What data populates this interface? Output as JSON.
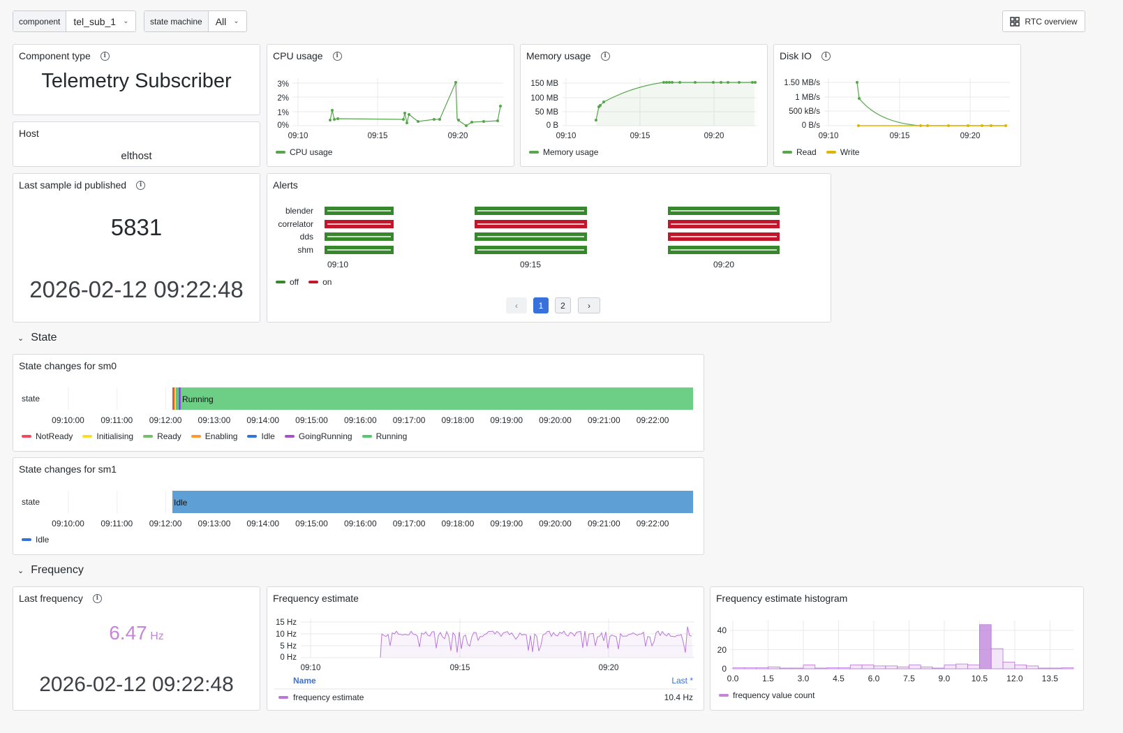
{
  "vars": {
    "component_label": "component",
    "component_value": "tel_sub_1",
    "sm_label": "state machine",
    "sm_value": "All",
    "rtc_button": "RTC overview"
  },
  "component_type": {
    "title": "Component type",
    "value": "Telemetry Subscriber"
  },
  "host": {
    "title": "Host",
    "value": "elthost"
  },
  "cpu": {
    "title": "CPU usage",
    "yticks": [
      "3%",
      "2%",
      "1%",
      "0%"
    ],
    "xticks": [
      "09:10",
      "09:15",
      "09:20"
    ],
    "legend": "CPU usage",
    "color": "#56a64b"
  },
  "memory": {
    "title": "Memory usage",
    "yticks": [
      "150 MB",
      "100 MB",
      "50 MB",
      "0 B"
    ],
    "xticks": [
      "09:10",
      "09:15",
      "09:20"
    ],
    "legend": "Memory usage",
    "color": "#56a64b"
  },
  "disk": {
    "title": "Disk IO",
    "yticks": [
      "1.50 MB/s",
      "1 MB/s",
      "500 kB/s",
      "0 B/s"
    ],
    "xticks": [
      "09:10",
      "09:15",
      "09:20"
    ],
    "legend_read": "Read",
    "legend_write": "Write",
    "read_color": "#56a64b",
    "write_color": "#e0b400"
  },
  "last_sample": {
    "title": "Last sample id published",
    "value": "5831",
    "time": "2026-02-12 09:22:48"
  },
  "alerts": {
    "title": "Alerts",
    "rows": [
      {
        "name": "blender",
        "states": [
          "off",
          "off",
          "off"
        ]
      },
      {
        "name": "correlator",
        "states": [
          "on",
          "on",
          "on"
        ]
      },
      {
        "name": "dds",
        "states": [
          "off",
          "off",
          "on"
        ]
      },
      {
        "name": "shm",
        "states": [
          "off",
          "off",
          "off"
        ]
      }
    ],
    "xticks": [
      "09:10",
      "09:15",
      "09:20"
    ],
    "legend_off": "off",
    "legend_on": "on",
    "off_color": "#37872d",
    "on_color": "#c4162a",
    "pages": [
      "1",
      "2"
    ],
    "prev": "‹",
    "next": "›"
  },
  "state_section": {
    "title": "State"
  },
  "sm0": {
    "title": "State changes for sm0",
    "row_label": "state",
    "bar_label": "Running",
    "xticks": [
      "09:10:00",
      "09:11:00",
      "09:12:00",
      "09:13:00",
      "09:14:00",
      "09:15:00",
      "09:16:00",
      "09:17:00",
      "09:18:00",
      "09:19:00",
      "09:20:00",
      "09:21:00",
      "09:22:00"
    ],
    "legend": [
      {
        "name": "NotReady",
        "color": "#f2495c"
      },
      {
        "name": "Initialising",
        "color": "#fade2a"
      },
      {
        "name": "Ready",
        "color": "#73bf69"
      },
      {
        "name": "Enabling",
        "color": "#ff9830"
      },
      {
        "name": "Idle",
        "color": "#3274d9"
      },
      {
        "name": "GoingRunning",
        "color": "#a352cc"
      },
      {
        "name": "Running",
        "color": "#56c96f"
      }
    ]
  },
  "sm1": {
    "title": "State changes for sm1",
    "row_label": "state",
    "bar_label": "Idle",
    "xticks": [
      "09:10:00",
      "09:11:00",
      "09:12:00",
      "09:13:00",
      "09:14:00",
      "09:15:00",
      "09:16:00",
      "09:17:00",
      "09:18:00",
      "09:19:00",
      "09:20:00",
      "09:21:00",
      "09:22:00"
    ],
    "legend": [
      {
        "name": "Idle",
        "color": "#3274d9"
      }
    ]
  },
  "frequency_section": {
    "title": "Frequency"
  },
  "last_freq": {
    "title": "Last frequency",
    "value": "6.47",
    "unit": "Hz",
    "time": "2026-02-12 09:22:48",
    "color": "#c586d8"
  },
  "freq_est": {
    "title": "Frequency estimate",
    "yticks": [
      "15 Hz",
      "10 Hz",
      "5 Hz",
      "0 Hz"
    ],
    "xticks": [
      "09:10",
      "09:15",
      "09:20"
    ],
    "col_name": "Name",
    "col_last": "Last *",
    "series_name": "frequency estimate",
    "series_last": "10.4 Hz",
    "color": "#b877d9"
  },
  "freq_hist": {
    "title": "Frequency estimate histogram",
    "yticks": [
      "40",
      "20",
      "0"
    ],
    "xticks": [
      "0.0",
      "1.5",
      "3.0",
      "4.5",
      "6.0",
      "7.5",
      "9.0",
      "10.5",
      "12.0",
      "13.5"
    ],
    "legend": "frequency value count",
    "color": "#b877d9"
  },
  "chart_data": [
    {
      "type": "line",
      "title": "CPU usage",
      "series": [
        {
          "name": "CPU usage",
          "x": [
            "09:12:05",
            "09:12:20",
            "09:12:30",
            "09:12:45",
            "09:16:40",
            "09:16:50",
            "09:17:00",
            "09:17:15",
            "09:17:45",
            "09:18:40",
            "09:19:00",
            "09:19:50",
            "09:20:00",
            "09:20:10",
            "09:20:30",
            "09:20:55",
            "09:21:30",
            "09:22:40",
            "09:22:50"
          ],
          "values": [
            0.4,
            1.1,
            0.4,
            0.5,
            0.4,
            0.9,
            0.4,
            0.8,
            0.3,
            0.5,
            0.5,
            3.1,
            0.4,
            0.3,
            0.0,
            0.2,
            0.3,
            0.3,
            1.3
          ]
        }
      ],
      "ylim": [
        0,
        3
      ]
    },
    {
      "type": "area",
      "title": "Memory usage",
      "series": [
        {
          "name": "Memory usage",
          "x": [
            "09:12:00",
            "09:12:15",
            "09:12:30",
            "09:13:00",
            "09:17:05",
            "09:17:15",
            "09:17:25",
            "09:17:35",
            "09:18:00",
            "09:18:35",
            "09:19:15",
            "09:20:00",
            "09:20:30",
            "09:20:55",
            "09:21:20",
            "09:21:45",
            "09:22:35",
            "09:22:50"
          ],
          "values": [
            5,
            60,
            70,
            80,
            150,
            150,
            150,
            150,
            150,
            150,
            150,
            150,
            150,
            150,
            150,
            150,
            150,
            150
          ]
        }
      ],
      "ylim": [
        0,
        160
      ]
    },
    {
      "type": "line",
      "title": "Disk IO",
      "series": [
        {
          "name": "Read",
          "x": [
            "09:12:00",
            "09:12:10",
            "09:15:20",
            "09:15:50",
            "09:17:00",
            "09:18:00",
            "09:19:00",
            "09:20:00",
            "09:21:00",
            "09:22:00"
          ],
          "values": [
            1.5,
            1.0,
            0.01,
            0.0,
            0.0,
            0.0,
            0.0,
            0.0,
            0.0,
            0.0
          ]
        },
        {
          "name": "Write",
          "x": [
            "09:12:00",
            "09:15:20",
            "09:15:50",
            "09:17:00",
            "09:18:20",
            "09:19:00",
            "09:20:00",
            "09:21:00",
            "09:22:00"
          ],
          "values": [
            0,
            0,
            0,
            0,
            0,
            0,
            0,
            0,
            0
          ]
        }
      ],
      "ylim": [
        0,
        1.6
      ]
    },
    {
      "type": "bar",
      "title": "Frequency estimate histogram",
      "categories": [
        "0.0",
        "0.5",
        "1.0",
        "1.5",
        "2.0",
        "2.5",
        "3.0",
        "3.5",
        "4.0",
        "4.5",
        "5.0",
        "5.5",
        "6.0",
        "6.5",
        "7.0",
        "7.5",
        "8.0",
        "8.5",
        "9.0",
        "9.5",
        "10.0",
        "10.5",
        "11.0",
        "11.5",
        "12.0",
        "12.5",
        "13.0",
        "13.5",
        "14.0"
      ],
      "values": [
        1,
        1,
        1,
        2,
        0,
        0,
        4,
        0,
        1,
        1,
        4,
        4,
        3,
        3,
        2,
        4,
        2,
        0,
        4,
        5,
        4,
        46,
        21,
        7,
        4,
        3,
        0,
        0,
        1
      ],
      "ylim": [
        0,
        50
      ]
    }
  ]
}
